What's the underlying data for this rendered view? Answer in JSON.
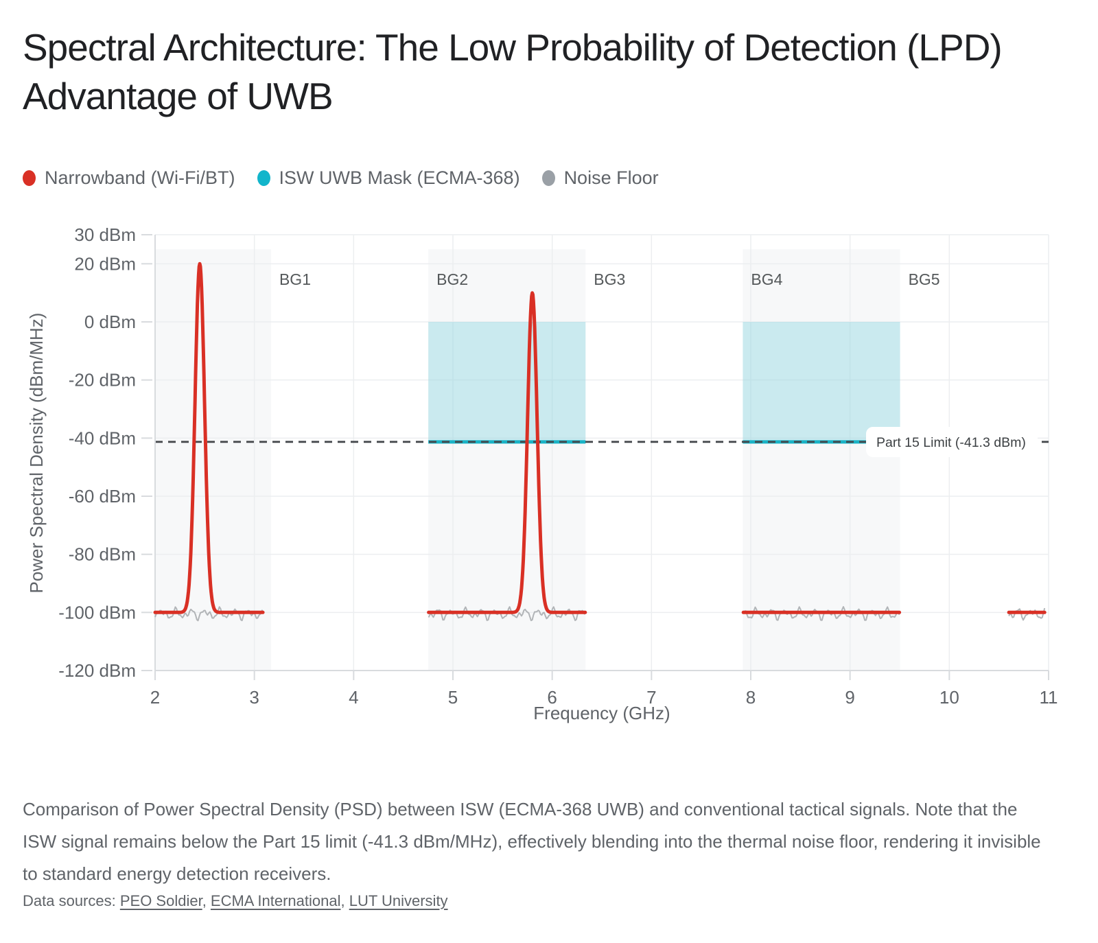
{
  "title": "Spectral Architecture: The Low Probability of Detection (LPD) Advantage of UWB",
  "legend": [
    {
      "label": "Narrowband (Wi-Fi/BT)",
      "color": "#d93025"
    },
    {
      "label": "ISW UWB Mask (ECMA-368)",
      "color": "#12b5cb"
    },
    {
      "label": "Noise Floor",
      "color": "#9aa0a6"
    }
  ],
  "chart_data": {
    "type": "line",
    "xlabel": "Frequency (GHz)",
    "ylabel": "Power Spectral Density (dBm/MHz)",
    "xlim": [
      2,
      11
    ],
    "ylim": [
      -120,
      30
    ],
    "x_ticks": [
      2,
      3,
      4,
      5,
      6,
      7,
      8,
      9,
      10,
      11
    ],
    "y_ticks": [
      {
        "v": 30,
        "label": "30 dBm"
      },
      {
        "v": 20,
        "label": "20 dBm"
      },
      {
        "v": 0,
        "label": "0 dBm"
      },
      {
        "v": -20,
        "label": "-20 dBm"
      },
      {
        "v": -40,
        "label": "-40 dBm"
      },
      {
        "v": -60,
        "label": "-60 dBm"
      },
      {
        "v": -80,
        "label": "-80 dBm"
      },
      {
        "v": -100,
        "label": "-100 dBm"
      },
      {
        "v": -120,
        "label": "-120 dBm"
      }
    ],
    "band_groups": [
      {
        "label": "BG1",
        "start_ghz": 3.168
      },
      {
        "label": "BG2",
        "start_ghz": 4.752
      },
      {
        "label": "BG3",
        "start_ghz": 6.336
      },
      {
        "label": "BG4",
        "start_ghz": 7.92
      },
      {
        "label": "BG5",
        "start_ghz": 9.504
      }
    ],
    "shaded_bands_ghz": [
      [
        2.0,
        3.168
      ],
      [
        4.752,
        6.336
      ],
      [
        7.92,
        9.504
      ]
    ],
    "shaded_band_top_dbm": 25,
    "uwb_mask": {
      "bands_ghz": [
        [
          4.752,
          6.336
        ],
        [
          7.92,
          9.504
        ]
      ],
      "top_dbm": 0,
      "limit_dbm": -41.3,
      "fill": "rgba(25,179,198,0.20)",
      "line_color": "#19b3c6"
    },
    "part15_limit": {
      "value_dbm": -41.3,
      "label": "Part 15 Limit (-41.3 dBm)"
    },
    "narrowband": {
      "base_dbm": -100,
      "segments_ghz": [
        [
          2.0,
          3.09
        ],
        [
          4.755,
          6.333
        ],
        [
          7.925,
          9.5
        ],
        [
          10.6,
          10.96
        ]
      ],
      "peaks": [
        {
          "center_ghz": 2.45,
          "peak_dbm": 20,
          "sigma_ghz": 0.048
        },
        {
          "center_ghz": 5.8,
          "peak_dbm": 10,
          "sigma_ghz": 0.048
        }
      ],
      "color": "#d93025"
    },
    "noise_floor": {
      "base_dbm": -100.5,
      "amplitude_db": 2.2,
      "color": "#b1b4b7"
    },
    "grid": {
      "color": "#eceef0",
      "axis_color": "#d8dbde"
    }
  },
  "caption": "Comparison of Power Spectral Density (PSD) between ISW (ECMA-368 UWB) and conventional tactical signals. Note that the ISW signal remains below the Part 15 limit (-41.3 dBm/MHz), effectively blending into the thermal noise floor, rendering it invisible to standard energy detection receivers.",
  "sources": {
    "prefix": "Data sources: ",
    "separator": ", ",
    "links": [
      "PEO Soldier",
      "ECMA International",
      "LUT University"
    ]
  }
}
